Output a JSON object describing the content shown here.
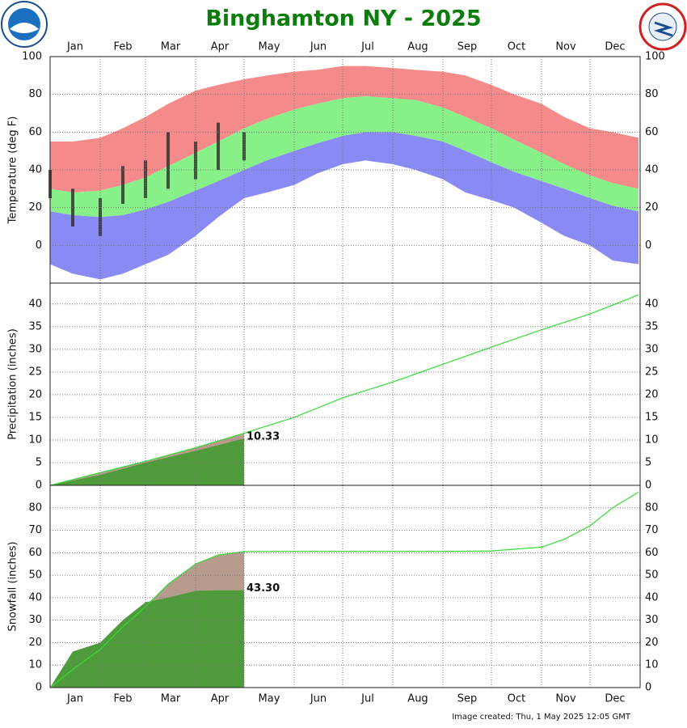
{
  "title": "Binghamton NY - 2025",
  "footnote": "Image created: Thu, 1 May 2025 12:05 GMT",
  "chart_data": [
    {
      "type": "band",
      "ylabel": "Temperature (deg F)",
      "xlim": [
        1,
        366
      ],
      "xticks": [
        1,
        32,
        60,
        91,
        121,
        152,
        182,
        213,
        244,
        274,
        305,
        335
      ],
      "months": [
        "Jan",
        "Feb",
        "Mar",
        "Apr",
        "May",
        "Jun",
        "Jul",
        "Aug",
        "Sep",
        "Oct",
        "Nov",
        "Dec"
      ],
      "month_side": "top",
      "ylim": [
        -20,
        100
      ],
      "yticks": [
        0,
        20,
        40,
        60,
        80,
        100
      ],
      "grid": true,
      "x": [
        1,
        15,
        32,
        46,
        60,
        74,
        91,
        105,
        121,
        135,
        152,
        166,
        182,
        196,
        213,
        227,
        244,
        258,
        274,
        288,
        305,
        319,
        335,
        349,
        365
      ],
      "series": [
        {
          "color": "#f48a8a",
          "values": [
            55,
            55,
            57,
            62,
            68,
            75,
            82,
            85,
            88,
            90,
            92,
            93,
            95,
            95,
            94,
            93,
            92,
            90,
            85,
            80,
            75,
            68,
            62,
            60,
            57
          ]
        },
        {
          "color": "#88f088",
          "values": [
            30,
            28,
            29,
            32,
            36,
            42,
            49,
            55,
            62,
            67,
            72,
            75,
            78,
            79,
            78,
            77,
            73,
            68,
            62,
            56,
            49,
            43,
            37,
            33,
            30
          ]
        },
        {
          "color": "#8a8af4",
          "values": [
            18,
            16,
            15,
            16,
            19,
            23,
            29,
            34,
            40,
            45,
            50,
            54,
            58,
            60,
            60,
            58,
            55,
            50,
            44,
            39,
            34,
            30,
            25,
            21,
            18
          ]
        },
        {
          "values": [
            -10,
            -15,
            -18,
            -15,
            -10,
            -5,
            5,
            15,
            25,
            28,
            32,
            38,
            43,
            45,
            43,
            40,
            35,
            28,
            24,
            20,
            12,
            5,
            0,
            -8,
            -10
          ]
        }
      ],
      "observed": {
        "color": "#2a2a2a",
        "high": [
          40,
          30,
          25,
          42,
          45,
          60,
          55,
          65,
          60,
          null,
          null,
          null,
          null,
          null,
          null,
          null,
          null,
          null,
          null,
          null,
          null,
          null,
          null,
          null,
          null
        ],
        "low": [
          25,
          10,
          5,
          22,
          25,
          30,
          35,
          40,
          45,
          null,
          null,
          null,
          null,
          null,
          null,
          null,
          null,
          null,
          null,
          null,
          null,
          null,
          null,
          null,
          null
        ]
      }
    },
    {
      "type": "area",
      "ylabel": "Precipitation (inches)",
      "xlim": [
        1,
        366
      ],
      "xticks": [
        1,
        32,
        60,
        91,
        121,
        152,
        182,
        213,
        244,
        274,
        305,
        335
      ],
      "ylim": [
        0,
        44.6
      ],
      "yticks": [
        0,
        5,
        10,
        15,
        20,
        25,
        30,
        35,
        40
      ],
      "grid": true,
      "x": [
        1,
        32,
        60,
        91,
        121,
        152,
        182,
        213,
        244,
        274,
        305,
        335,
        365
      ],
      "series": [
        {
          "color": "#33dd33",
          "fill": "#b79c8e",
          "values": [
            0,
            2.8,
            5.3,
            8.3,
            11.5,
            15,
            19.3,
            22.8,
            26.7,
            30.5,
            34.3,
            37.8,
            42
          ]
        },
        {
          "color": "#4f9a3a",
          "label_last": true,
          "values": [
            0,
            2.3,
            5.0,
            7.6,
            10.33,
            null,
            null,
            null,
            null,
            null,
            null,
            null,
            null
          ]
        }
      ]
    },
    {
      "type": "area",
      "ylabel": "Snowfall (inches)",
      "xlim": [
        1,
        366
      ],
      "xticks": [
        1,
        32,
        60,
        91,
        121,
        152,
        182,
        213,
        244,
        274,
        305,
        335
      ],
      "months": [
        "Jan",
        "Feb",
        "Mar",
        "Apr",
        "May",
        "Jun",
        "Jul",
        "Aug",
        "Sep",
        "Oct",
        "Nov",
        "Dec"
      ],
      "month_side": "bottom",
      "ylim": [
        0,
        90
      ],
      "yticks": [
        0,
        10,
        20,
        30,
        40,
        50,
        60,
        70,
        80
      ],
      "grid": true,
      "x": [
        1,
        15,
        32,
        46,
        60,
        74,
        91,
        105,
        121,
        152,
        182,
        213,
        244,
        274,
        305,
        319,
        335,
        349,
        365
      ],
      "series": [
        {
          "color": "#33dd33",
          "fill": "#b79c8e",
          "values": [
            0,
            8,
            17,
            27,
            36,
            46,
            55,
            59,
            60.5,
            60.6,
            60.6,
            60.6,
            60.6,
            60.8,
            62.5,
            66,
            72,
            80,
            87
          ]
        },
        {
          "color": "#4f9a3a",
          "values": [
            0,
            16,
            20,
            30,
            38,
            40,
            43,
            43.3,
            43.3,
            null,
            null,
            null,
            null,
            null,
            null,
            null,
            null,
            null,
            null
          ],
          "value_labels": [
            null,
            null,
            null,
            null,
            null,
            null,
            null,
            null,
            "43.30",
            null,
            null,
            null,
            null,
            null,
            null,
            null,
            null,
            null,
            null
          ]
        }
      ]
    }
  ]
}
